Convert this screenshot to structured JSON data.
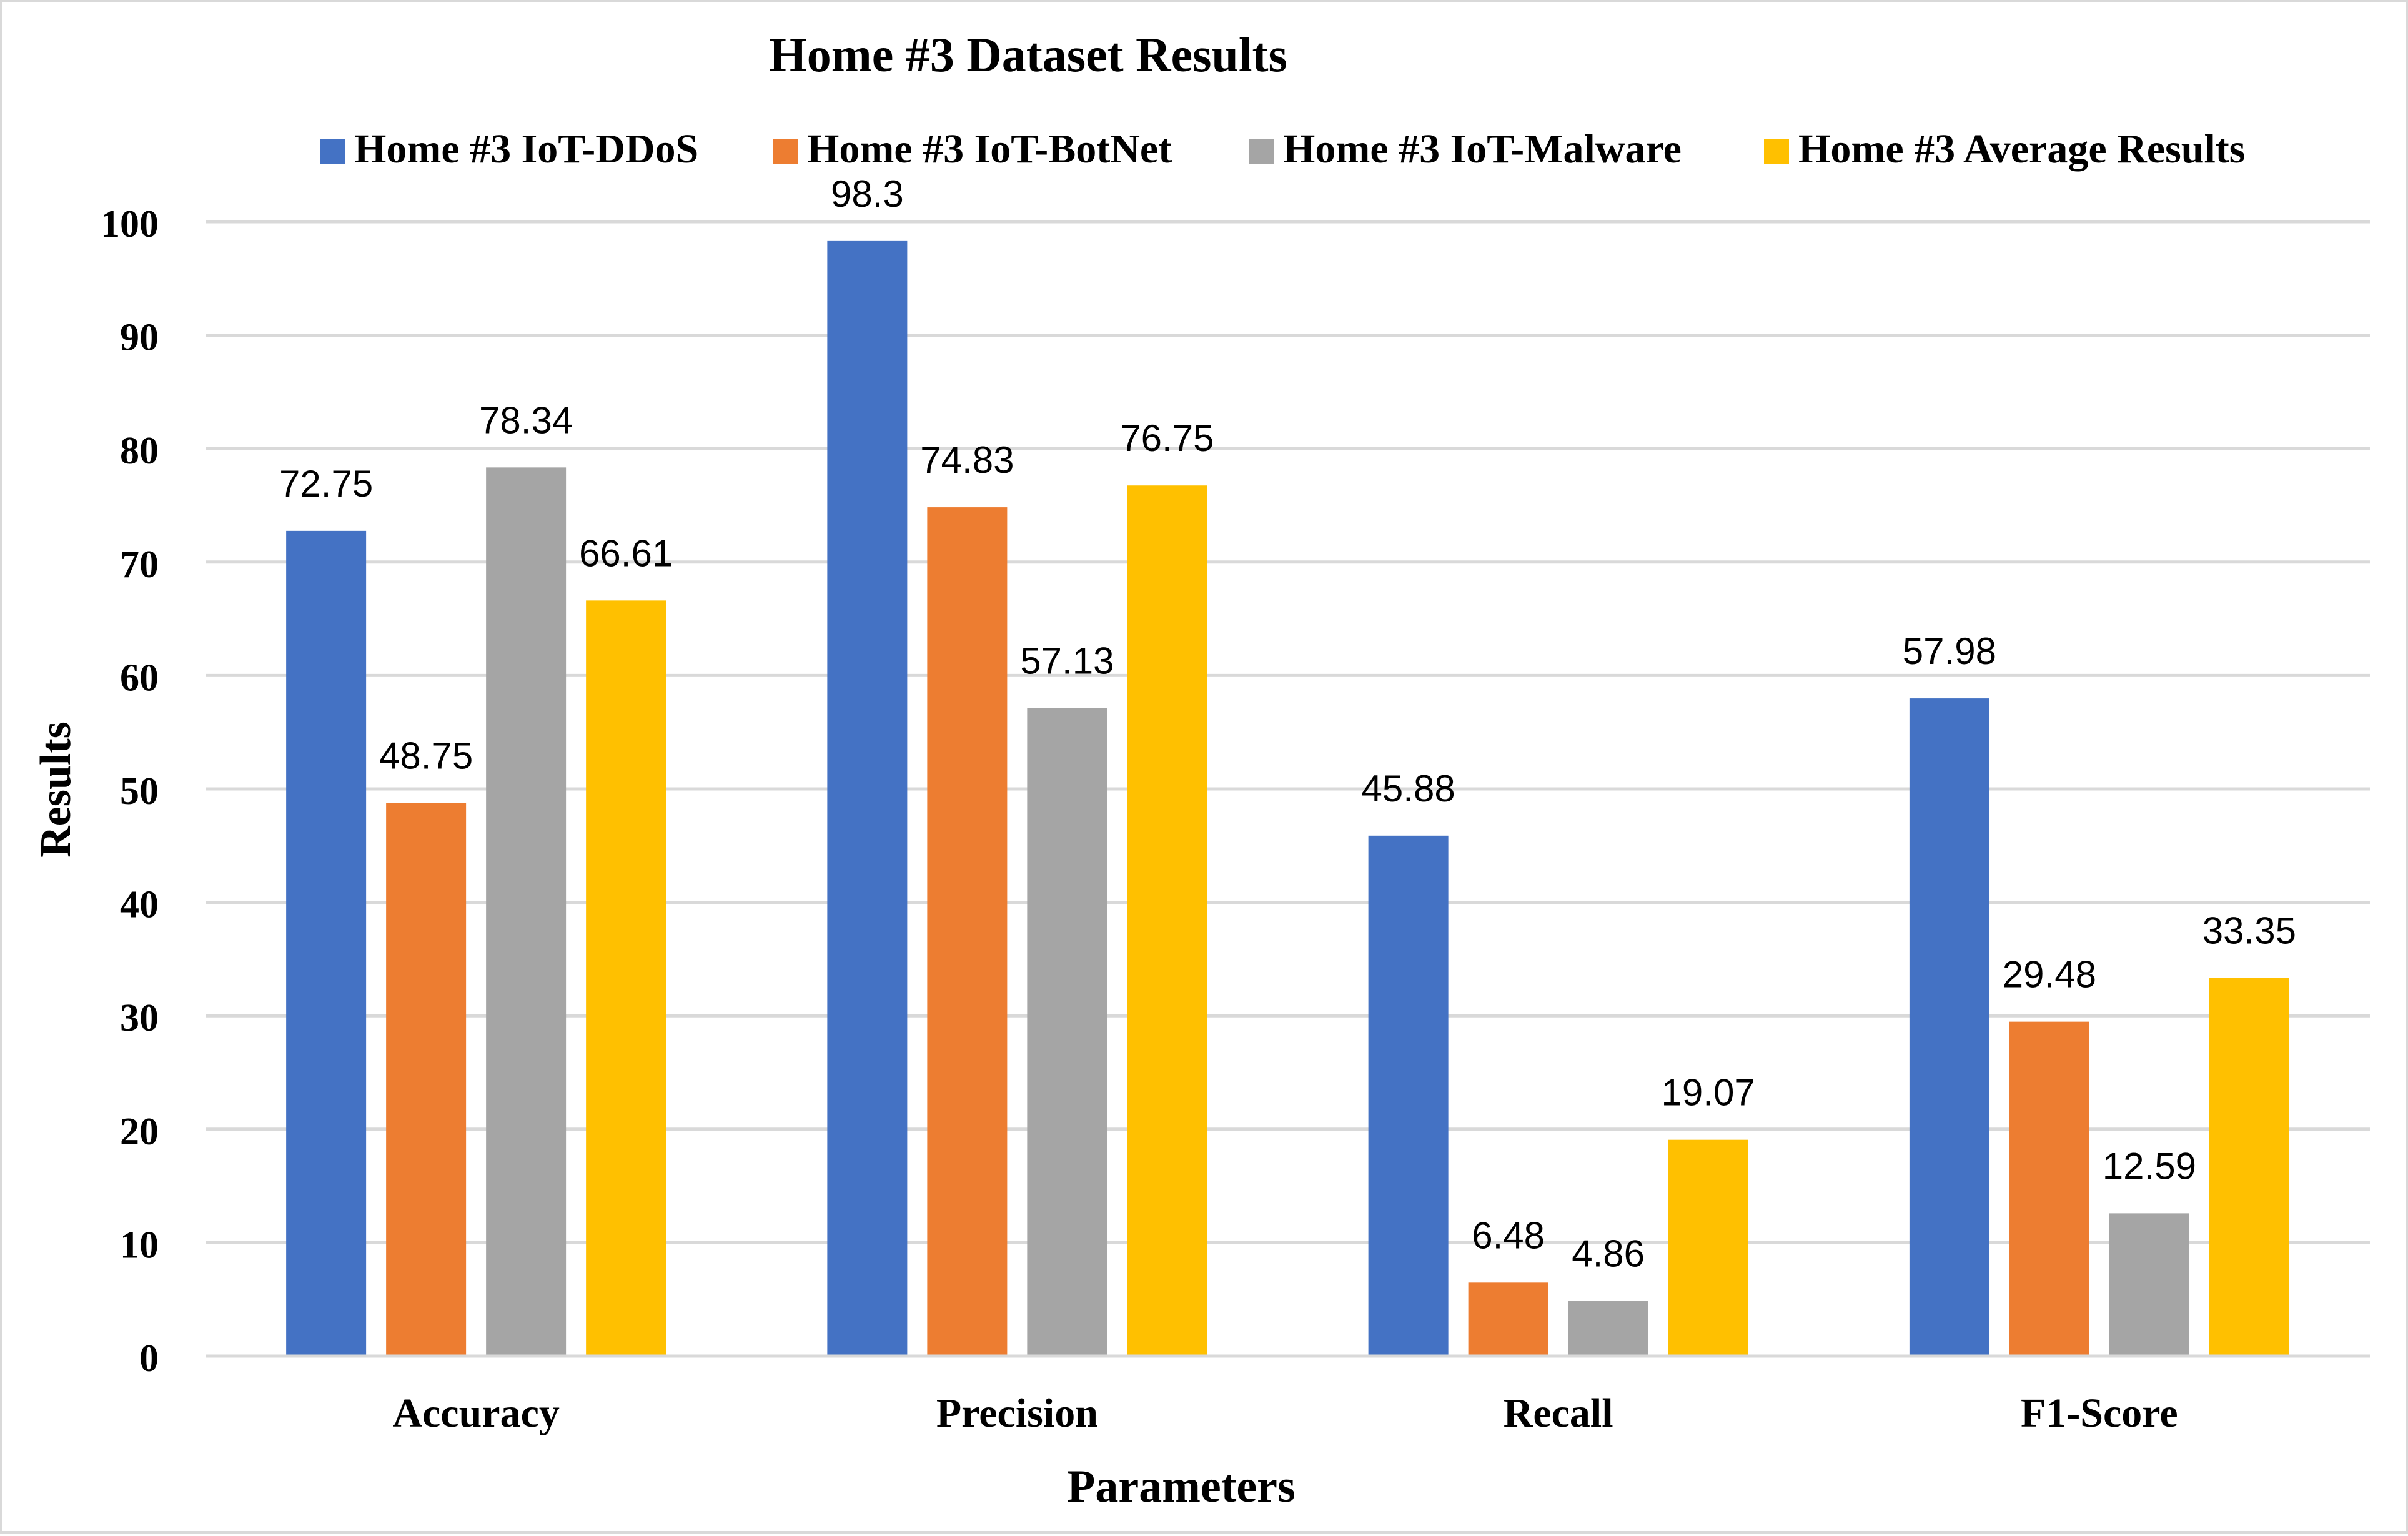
{
  "chart_data": {
    "type": "bar",
    "title": "Home #3 Dataset Results",
    "xlabel": "Parameters",
    "ylabel": "Results",
    "categories": [
      "Accuracy",
      "Precision",
      "Recall",
      "F1-Score"
    ],
    "ylim": [
      0,
      100
    ],
    "yticks": [
      0,
      10,
      20,
      30,
      40,
      50,
      60,
      70,
      80,
      90,
      100
    ],
    "grid": true,
    "legend_position": "top",
    "series": [
      {
        "name": "Home #3 IoT-DDoS",
        "color": "#4472C4",
        "values": [
          72.75,
          98.3,
          45.88,
          57.98
        ],
        "labels": [
          "72.75",
          "98.3",
          "45.88",
          "57.98"
        ]
      },
      {
        "name": "Home #3 IoT-BotNet",
        "color": "#ED7D31",
        "values": [
          48.75,
          74.83,
          6.48,
          29.48
        ],
        "labels": [
          "48.75",
          "74.83",
          "6.48",
          "29.48"
        ]
      },
      {
        "name": "Home #3 IoT-Malware",
        "color": "#A5A5A5",
        "values": [
          78.34,
          57.13,
          4.86,
          12.59
        ],
        "labels": [
          "78.34",
          "57.13",
          "4.86",
          "12.59"
        ]
      },
      {
        "name": "Home #3 Average Results",
        "color": "#FFC000",
        "values": [
          66.61,
          76.75,
          19.07,
          33.35
        ],
        "labels": [
          "66.61",
          "76.75",
          "19.07",
          "33.35"
        ]
      }
    ]
  }
}
